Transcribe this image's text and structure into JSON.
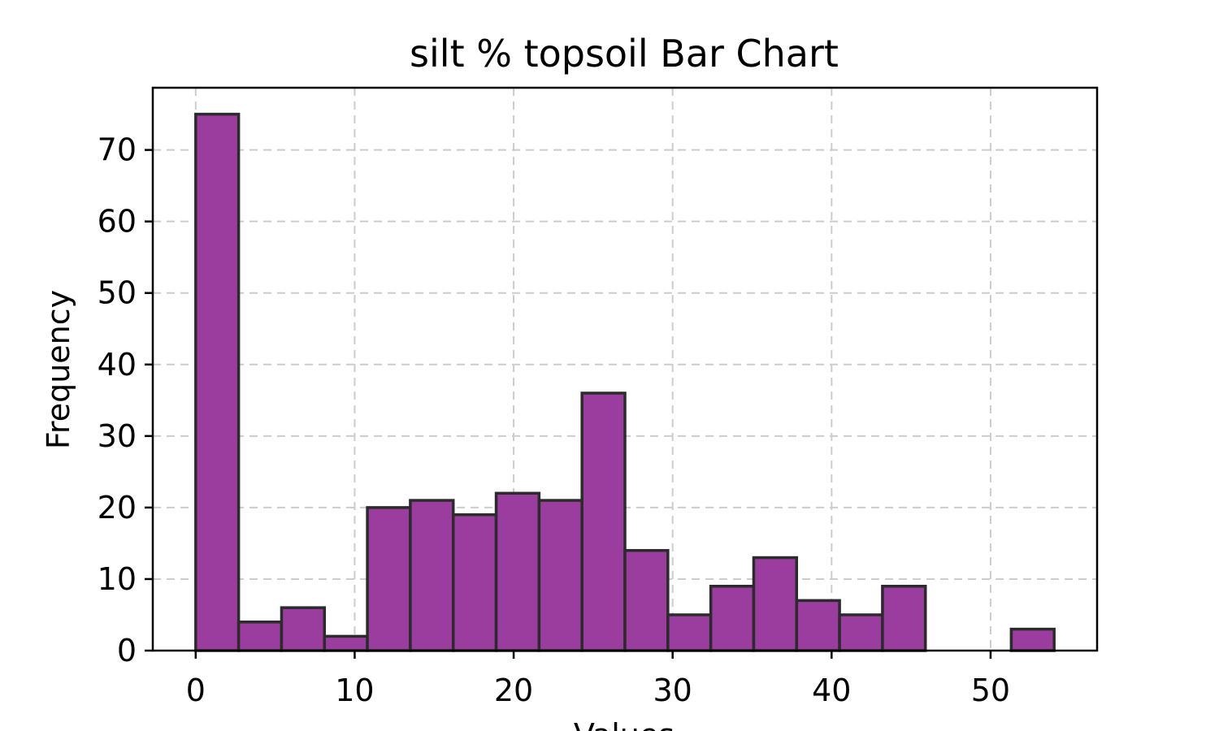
{
  "chart_data": {
    "type": "bar",
    "title": "silt % topsoil Bar Chart",
    "xlabel": "Values",
    "ylabel": "Frequency",
    "color": "#9b3c9f",
    "edge_color": "#2b2b2b",
    "grid": true,
    "xlim": [
      -2.7,
      56.7
    ],
    "ylim": [
      0,
      78.7
    ],
    "xticks": [
      0,
      10,
      20,
      30,
      40,
      50
    ],
    "yticks": [
      0,
      10,
      20,
      30,
      40,
      50,
      60,
      70
    ],
    "bin_width": 2.7,
    "bins": [
      {
        "start": 0.0,
        "end": 2.7,
        "value": 75
      },
      {
        "start": 2.7,
        "end": 5.4,
        "value": 4
      },
      {
        "start": 5.4,
        "end": 8.1,
        "value": 6
      },
      {
        "start": 8.1,
        "end": 10.8,
        "value": 2
      },
      {
        "start": 10.8,
        "end": 13.5,
        "value": 20
      },
      {
        "start": 13.5,
        "end": 16.2,
        "value": 21
      },
      {
        "start": 16.2,
        "end": 18.9,
        "value": 19
      },
      {
        "start": 18.9,
        "end": 21.6,
        "value": 22
      },
      {
        "start": 21.6,
        "end": 24.3,
        "value": 21
      },
      {
        "start": 24.3,
        "end": 27.0,
        "value": 36
      },
      {
        "start": 27.0,
        "end": 29.7,
        "value": 14
      },
      {
        "start": 29.7,
        "end": 32.4,
        "value": 5
      },
      {
        "start": 32.4,
        "end": 35.1,
        "value": 9
      },
      {
        "start": 35.1,
        "end": 37.8,
        "value": 13
      },
      {
        "start": 37.8,
        "end": 40.5,
        "value": 7
      },
      {
        "start": 40.5,
        "end": 43.2,
        "value": 5
      },
      {
        "start": 43.2,
        "end": 45.9,
        "value": 9
      },
      {
        "start": 45.9,
        "end": 48.6,
        "value": 0
      },
      {
        "start": 48.6,
        "end": 51.3,
        "value": 0
      },
      {
        "start": 51.3,
        "end": 54.0,
        "value": 3
      }
    ]
  }
}
